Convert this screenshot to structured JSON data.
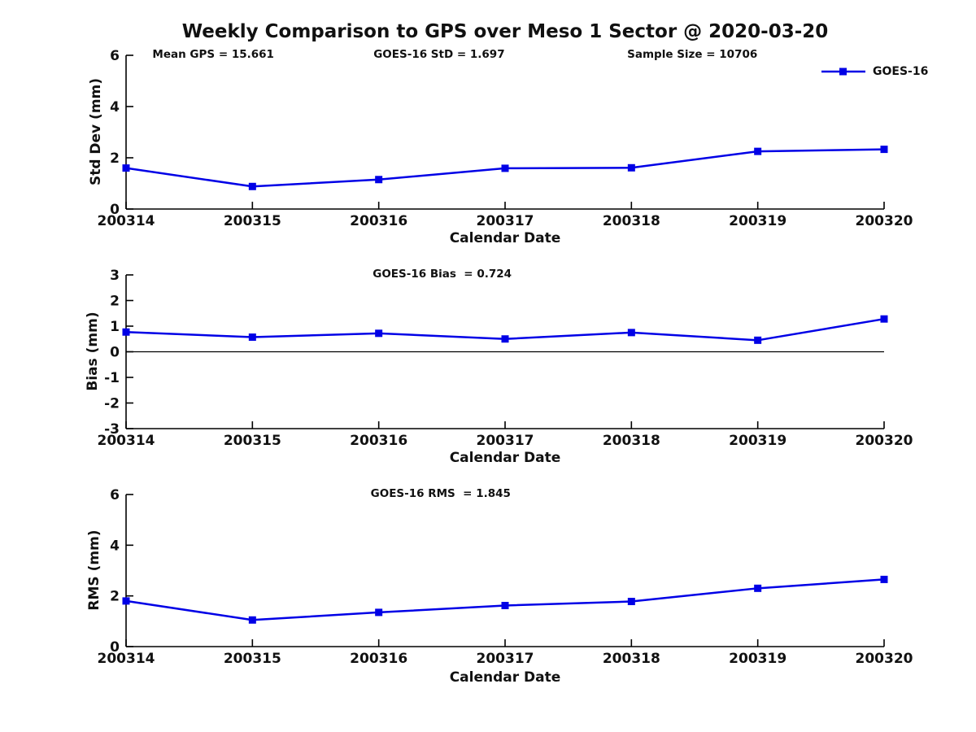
{
  "figure": {
    "title": "Weekly Comparison to GPS over Meso 1 Sector @ 2020-03-20",
    "background_color": "#ffffff",
    "text_color": "#111111",
    "axis_color": "#000000"
  },
  "legend": {
    "label": "GOES-16",
    "color": "#0000e6",
    "position": "top-right-of-first-subplot"
  },
  "chart_data": [
    {
      "type": "line",
      "title": "",
      "xlabel": "Calendar Date",
      "ylabel": "Std Dev (mm)",
      "categories": [
        "200314",
        "200315",
        "200316",
        "200317",
        "200318",
        "200319",
        "200320"
      ],
      "series": [
        {
          "name": "GOES-16",
          "values": [
            1.6,
            0.88,
            1.15,
            1.59,
            1.61,
            2.25,
            2.33
          ],
          "color": "#0000e6",
          "marker": "square"
        }
      ],
      "ylim": [
        0,
        6
      ],
      "yticks": [
        0,
        2,
        4,
        6
      ],
      "grid": false,
      "annotations": [
        {
          "text": "Mean GPS = 15.661"
        },
        {
          "text": "GOES-16 StD = 1.697"
        },
        {
          "text": "Sample Size = 10706"
        }
      ]
    },
    {
      "type": "line",
      "title": "",
      "xlabel": "Calendar Date",
      "ylabel": "Bias (mm)",
      "categories": [
        "200314",
        "200315",
        "200316",
        "200317",
        "200318",
        "200319",
        "200320"
      ],
      "series": [
        {
          "name": "GOES-16",
          "values": [
            0.77,
            0.57,
            0.72,
            0.5,
            0.75,
            0.45,
            1.28
          ],
          "color": "#0000e6",
          "marker": "square"
        }
      ],
      "ylim": [
        -3,
        3
      ],
      "yticks": [
        -3,
        -2,
        -1,
        0,
        1,
        2,
        3
      ],
      "grid": false,
      "zero_line": true,
      "annotations": [
        {
          "text": "GOES-16 Bias  = 0.724"
        }
      ]
    },
    {
      "type": "line",
      "title": "",
      "xlabel": "Calendar Date",
      "ylabel": "RMS (mm)",
      "categories": [
        "200314",
        "200315",
        "200316",
        "200317",
        "200318",
        "200319",
        "200320"
      ],
      "series": [
        {
          "name": "GOES-16",
          "values": [
            1.8,
            1.05,
            1.35,
            1.62,
            1.78,
            2.3,
            2.65
          ],
          "color": "#0000e6",
          "marker": "square"
        }
      ],
      "ylim": [
        0,
        6
      ],
      "yticks": [
        0,
        2,
        4,
        6
      ],
      "grid": false,
      "annotations": [
        {
          "text": "GOES-16 RMS  = 1.845"
        }
      ]
    }
  ]
}
